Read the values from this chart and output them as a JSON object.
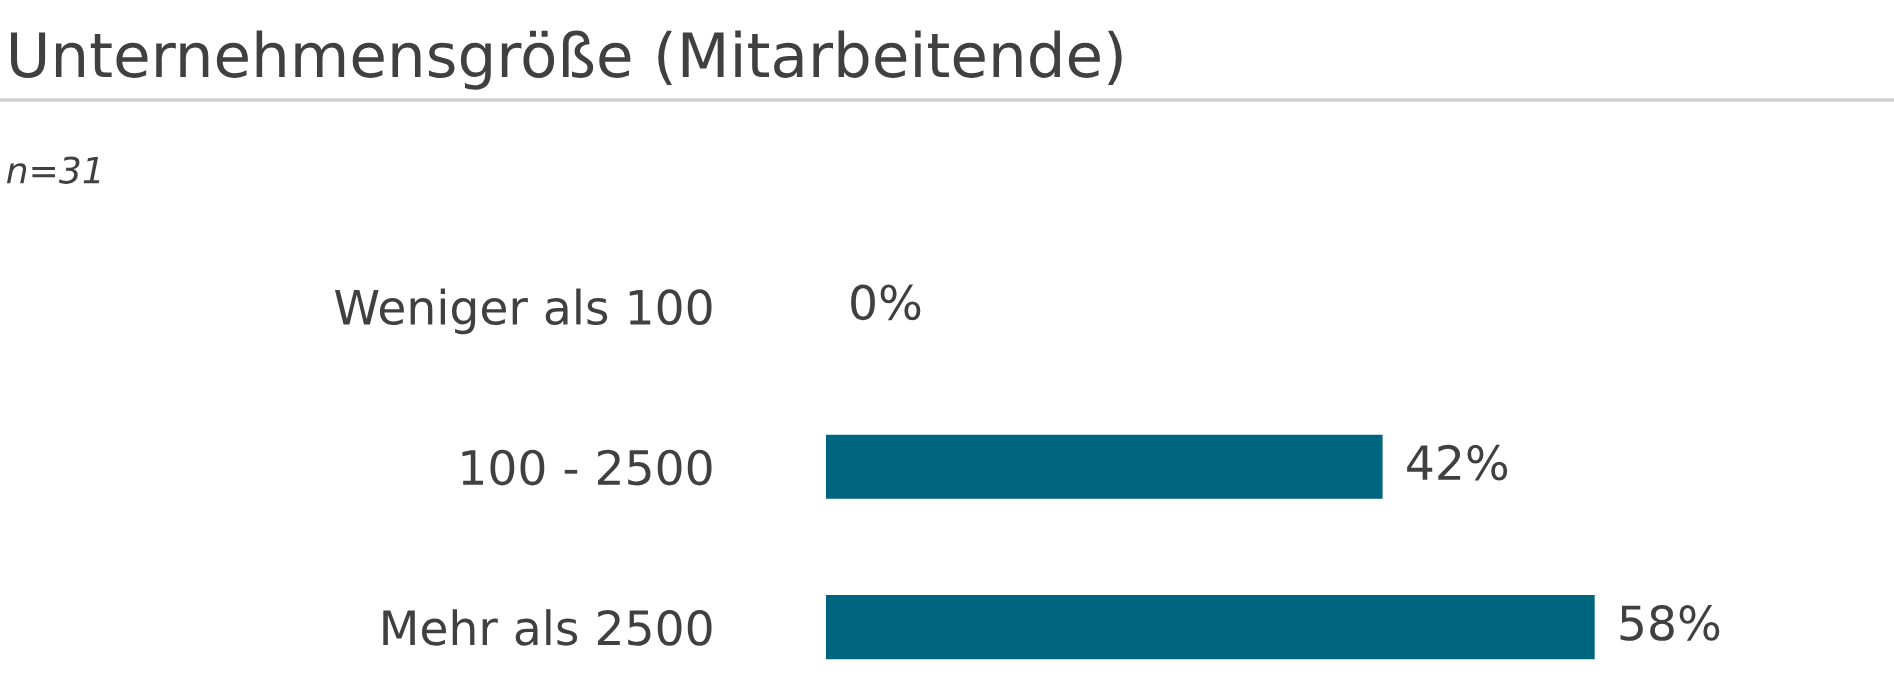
{
  "chart_data": {
    "type": "bar",
    "orientation": "horizontal",
    "title": "Unternehmensgröße (Mitarbeitende)",
    "subtitle": "n=31",
    "categories": [
      "Weniger als 100",
      "100 - 2500",
      "Mehr als 2500"
    ],
    "values": [
      0,
      42,
      58
    ],
    "value_labels": [
      "0%",
      "42%",
      "58%"
    ],
    "color": "#00657f",
    "grid": false,
    "legend": false
  }
}
